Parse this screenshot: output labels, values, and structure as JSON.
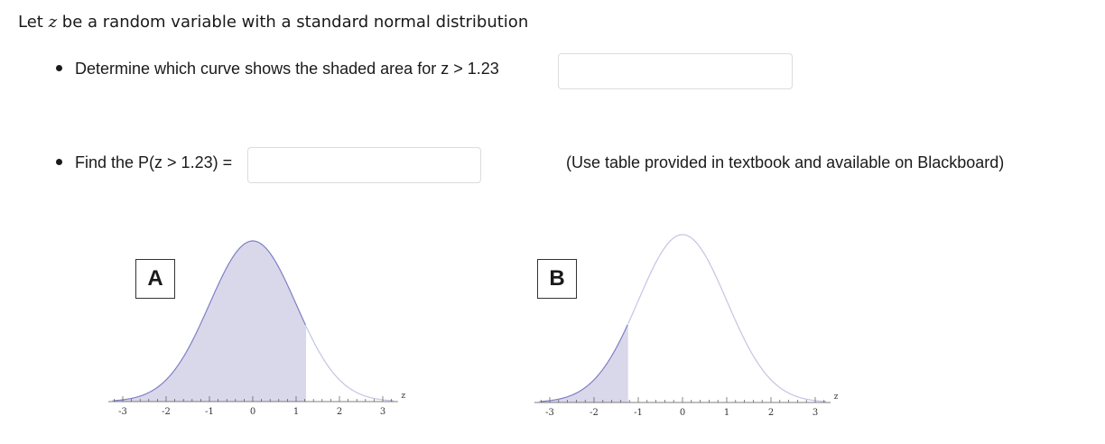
{
  "intro": {
    "prefix": "Let ",
    "variable": "z",
    "suffix": " be a random variable with a standard normal distribution"
  },
  "question1": {
    "text": "Determine which curve shows the shaded area for z > 1.23",
    "answer": ""
  },
  "question2": {
    "text": "Find the P(z > 1.23) =",
    "answer": ""
  },
  "hint": "(Use table provided in textbook and available on Blackboard)",
  "curves": [
    {
      "label": "A",
      "shade_from": -3.2,
      "shade_to": 1.23,
      "axis_name": "z",
      "tick_labels": [
        "-3",
        "-2",
        "-1",
        "0",
        "1",
        "2",
        "3"
      ]
    },
    {
      "label": "B",
      "shade_from": -3.2,
      "shade_to": -1.23,
      "axis_name": "z",
      "tick_labels": [
        "-3",
        "-2",
        "-1",
        "0",
        "1",
        "2",
        "3"
      ]
    }
  ],
  "colors": {
    "shade": "#d9d8ea",
    "curve_line": "#7f7fc7",
    "curve_line_light": "#c4c4e4",
    "axis": "#555555"
  }
}
